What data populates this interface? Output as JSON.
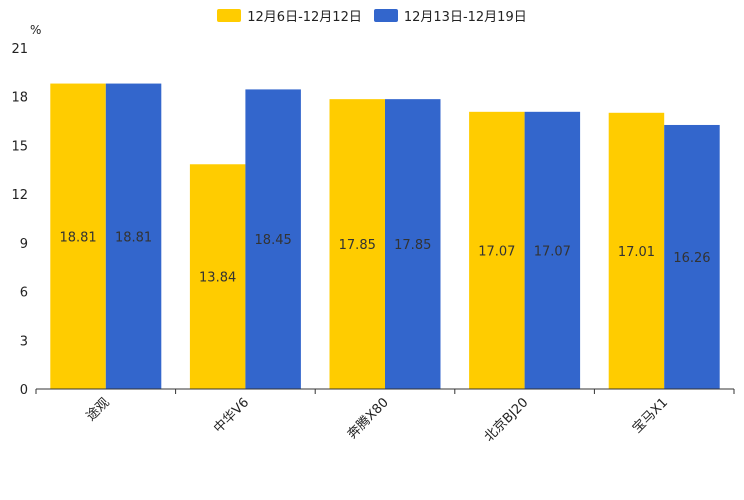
{
  "chart_data": {
    "type": "bar",
    "title": "",
    "xlabel": "",
    "ylabel": "%",
    "ylim": [
      0,
      21
    ],
    "yticks": [
      0,
      3,
      6,
      9,
      12,
      15,
      18,
      21
    ],
    "categories": [
      "途观",
      "中华V6",
      "奔腾X80",
      "北京BJ20",
      "宝马X1"
    ],
    "series": [
      {
        "name": "12月6日-12月12日",
        "color": "#FFCC00",
        "values": [
          18.81,
          13.84,
          17.85,
          17.07,
          17.01
        ]
      },
      {
        "name": "12月13日-12月19日",
        "color": "#3366CC",
        "values": [
          18.81,
          18.45,
          17.85,
          17.07,
          16.26
        ]
      }
    ],
    "legend_position": "top-center",
    "grid": false
  }
}
